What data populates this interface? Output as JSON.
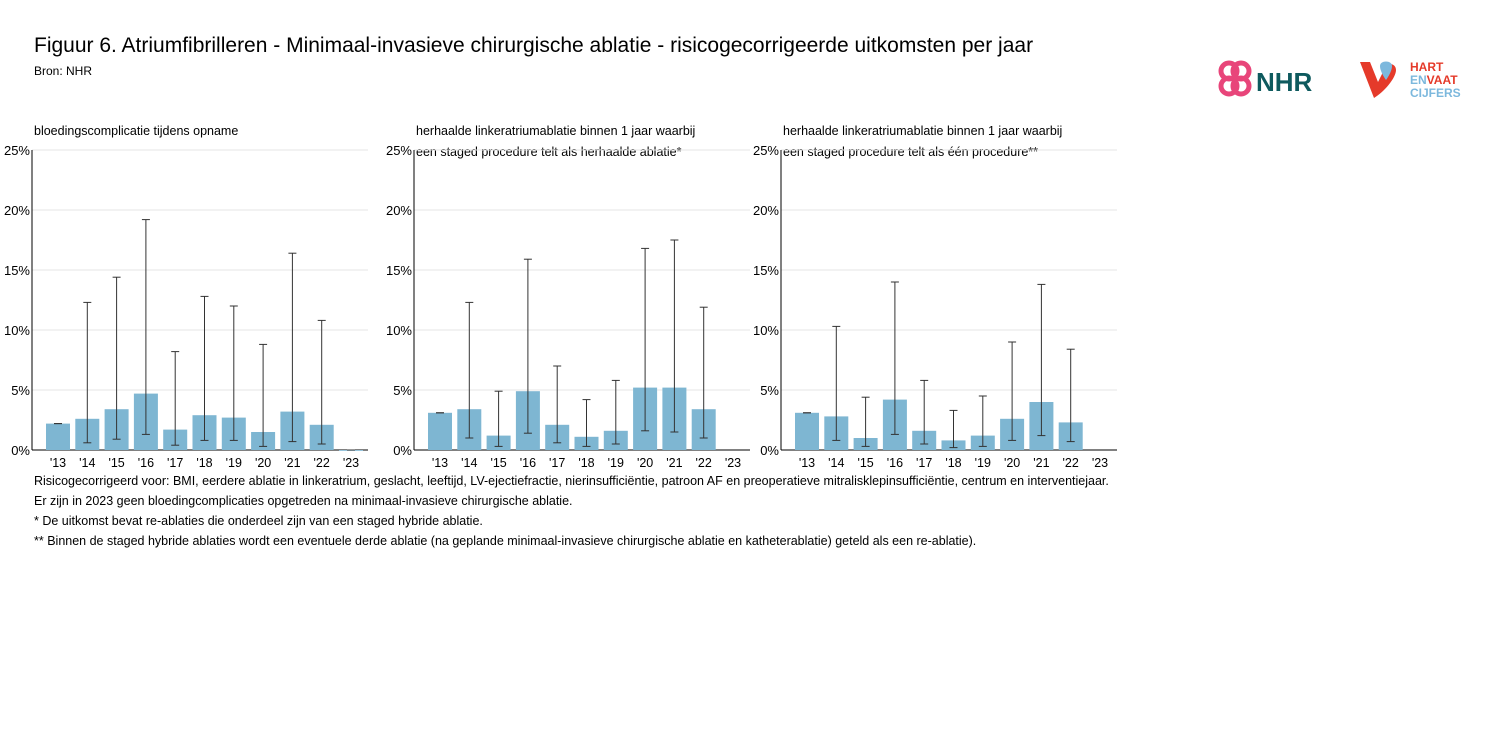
{
  "header": {
    "title": "Figuur 6. Atriumfibrilleren - Minimaal-invasieve chirurgische ablatie - risicogecorrigeerde uitkomsten per jaar",
    "source": "Bron: NHR"
  },
  "logos": {
    "nhr_text": "NHR",
    "hartenvaat_line1": "HART",
    "hartenvaat_line2_a": "EN",
    "hartenvaat_line2_b": "VAAT",
    "hartenvaat_line3": "CIJFERS"
  },
  "colors": {
    "bar": "#7eb6d2",
    "errorbar": "#333333",
    "grid": "#e6e6e6",
    "nhr_pink": "#e8457a",
    "nhr_teal": "#0e5a5e",
    "hv_red": "#e53a2a",
    "hv_blue": "#7cb8dd"
  },
  "chart_data": [
    {
      "type": "bar",
      "title_lines": [
        "bloedingscomplicatie tijdens opname"
      ],
      "categories": [
        "'13",
        "'14",
        "'15",
        "'16",
        "'17",
        "'18",
        "'19",
        "'20",
        "'21",
        "'22",
        "'23"
      ],
      "values": [
        2.2,
        2.6,
        3.4,
        4.7,
        1.7,
        2.9,
        2.7,
        1.5,
        3.2,
        2.1,
        0
      ],
      "ci_low": [
        2.2,
        0.6,
        0.9,
        1.3,
        0.4,
        0.8,
        0.8,
        0.3,
        0.7,
        0.5,
        0
      ],
      "ci_high": [
        2.2,
        12.3,
        14.4,
        19.2,
        8.2,
        12.8,
        12.0,
        8.8,
        16.4,
        10.8,
        0
      ],
      "yticks": [
        "0%",
        "5%",
        "10%",
        "15%",
        "20%",
        "25%"
      ],
      "ylim": [
        0,
        25
      ]
    },
    {
      "type": "bar",
      "title_lines": [
        "herhaalde linkeratriumablatie binnen 1 jaar waarbij",
        "een staged procedure telt als herhaalde ablatie*"
      ],
      "categories": [
        "'13",
        "'14",
        "'15",
        "'16",
        "'17",
        "'18",
        "'19",
        "'20",
        "'21",
        "'22",
        "'23"
      ],
      "values": [
        3.1,
        3.4,
        1.2,
        4.9,
        2.1,
        1.1,
        1.6,
        5.2,
        5.2,
        3.4,
        null
      ],
      "ci_low": [
        3.1,
        1.0,
        0.3,
        1.4,
        0.6,
        0.3,
        0.5,
        1.6,
        1.5,
        1.0,
        null
      ],
      "ci_high": [
        3.1,
        12.3,
        4.9,
        15.9,
        7.0,
        4.2,
        5.8,
        16.8,
        17.5,
        11.9,
        null
      ],
      "yticks": [
        "0%",
        "5%",
        "10%",
        "15%",
        "20%",
        "25%"
      ],
      "ylim": [
        0,
        25
      ]
    },
    {
      "type": "bar",
      "title_lines": [
        "herhaalde linkeratriumablatie binnen 1 jaar waarbij",
        "een staged procedure telt als één procedure**"
      ],
      "categories": [
        "'13",
        "'14",
        "'15",
        "'16",
        "'17",
        "'18",
        "'19",
        "'20",
        "'21",
        "'22",
        "'23"
      ],
      "values": [
        3.1,
        2.8,
        1.0,
        4.2,
        1.6,
        0.8,
        1.2,
        2.6,
        4.0,
        2.3,
        null
      ],
      "ci_low": [
        3.1,
        0.8,
        0.3,
        1.3,
        0.5,
        0.2,
        0.3,
        0.8,
        1.2,
        0.7,
        null
      ],
      "ci_high": [
        3.1,
        10.3,
        4.4,
        14.0,
        5.8,
        3.3,
        4.5,
        9.0,
        13.8,
        8.4,
        null
      ],
      "yticks": [
        "0%",
        "5%",
        "10%",
        "15%",
        "20%",
        "25%"
      ],
      "ylim": [
        0,
        25
      ]
    }
  ],
  "footnotes": [
    "Risicogecorrigeerd voor: BMI, eerdere ablatie in linkeratrium, geslacht, leeftijd, LV-ejectiefractie, nierinsufficiëntie, patroon AF en preoperatieve mitralisklepinsufficiëntie, centrum en interventiejaar.",
    "Er zijn in 2023 geen bloedingcomplicaties opgetreden na minimaal-invasieve chirurgische ablatie.",
    "* De uitkomst bevat re-ablaties die onderdeel zijn van een staged hybride ablatie.",
    "** Binnen de staged hybride ablaties wordt een eventuele derde ablatie (na geplande minimaal-invasieve chirurgische ablatie en katheterablatie) geteld als een re-ablatie)."
  ]
}
